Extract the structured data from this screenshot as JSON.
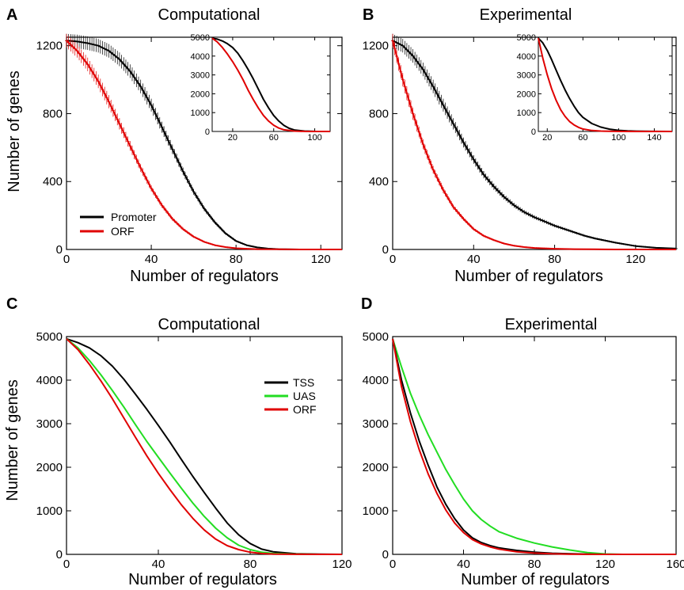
{
  "chart_data": [
    {
      "panel": "A",
      "type": "line",
      "title": "Computational",
      "xlabel": "Number of regulators",
      "ylabel": "Number of genes",
      "xlim": [
        0,
        130
      ],
      "ylim": [
        0,
        1250
      ],
      "xticks": [
        0,
        40,
        80,
        120
      ],
      "yticks": [
        0,
        400,
        800,
        1200
      ],
      "error_bars": true,
      "legend": {
        "position": "bottom-left",
        "entries": [
          "Promoter",
          "ORF"
        ]
      },
      "series": [
        {
          "name": "Promoter",
          "color": "#000000",
          "x": [
            0,
            5,
            10,
            15,
            20,
            25,
            30,
            35,
            40,
            45,
            50,
            55,
            60,
            65,
            70,
            75,
            80,
            85,
            90,
            95,
            100,
            110,
            120,
            130
          ],
          "y": [
            1230,
            1225,
            1215,
            1200,
            1170,
            1120,
            1050,
            960,
            850,
            720,
            590,
            460,
            340,
            240,
            160,
            95,
            50,
            25,
            12,
            5,
            2,
            0,
            0,
            0
          ]
        },
        {
          "name": "ORF",
          "color": "#e00000",
          "x": [
            0,
            5,
            10,
            15,
            20,
            25,
            30,
            35,
            40,
            45,
            50,
            55,
            60,
            65,
            70,
            75,
            80,
            85,
            90,
            100,
            110,
            120,
            130
          ],
          "y": [
            1230,
            1170,
            1090,
            990,
            870,
            740,
            610,
            480,
            360,
            260,
            180,
            120,
            75,
            45,
            25,
            14,
            7,
            4,
            2,
            1,
            0,
            0,
            0
          ]
        }
      ],
      "inset": {
        "xlim": [
          0,
          115
        ],
        "ylim": [
          0,
          5000
        ],
        "xticks": [
          20,
          60,
          100
        ],
        "yticks": [
          0,
          1000,
          2000,
          3000,
          4000,
          5000
        ],
        "series": [
          {
            "color": "#000000",
            "x": [
              0,
              5,
              10,
              15,
              20,
              25,
              30,
              35,
              40,
              45,
              50,
              55,
              60,
              65,
              70,
              75,
              80,
              90,
              100,
              115
            ],
            "y": [
              4950,
              4900,
              4800,
              4650,
              4450,
              4150,
              3750,
              3300,
              2800,
              2250,
              1700,
              1250,
              850,
              550,
              320,
              170,
              80,
              20,
              5,
              0
            ]
          },
          {
            "color": "#e00000",
            "x": [
              0,
              5,
              10,
              15,
              20,
              25,
              30,
              35,
              40,
              45,
              50,
              55,
              60,
              65,
              70,
              80,
              90,
              100,
              115
            ],
            "y": [
              4950,
              4750,
              4450,
              4100,
              3700,
              3250,
              2750,
              2200,
              1700,
              1250,
              850,
              550,
              330,
              180,
              90,
              20,
              5,
              0,
              0
            ]
          }
        ]
      }
    },
    {
      "panel": "B",
      "type": "line",
      "title": "Experimental",
      "xlabel": "Number of regulators",
      "ylabel": "",
      "xlim": [
        0,
        140
      ],
      "ylim": [
        0,
        1250
      ],
      "xticks": [
        0,
        40,
        80,
        120
      ],
      "yticks": [
        0,
        400,
        800,
        1200
      ],
      "error_bars": true,
      "series": [
        {
          "name": "Promoter",
          "color": "#000000",
          "x": [
            0,
            5,
            10,
            15,
            20,
            25,
            30,
            35,
            40,
            45,
            50,
            55,
            60,
            65,
            70,
            75,
            80,
            85,
            90,
            95,
            100,
            110,
            120,
            130,
            140
          ],
          "y": [
            1230,
            1200,
            1140,
            1060,
            960,
            850,
            740,
            630,
            530,
            440,
            370,
            310,
            260,
            220,
            190,
            165,
            140,
            120,
            100,
            80,
            65,
            40,
            20,
            10,
            5
          ]
        },
        {
          "name": "ORF",
          "color": "#e00000",
          "x": [
            0,
            5,
            10,
            15,
            20,
            25,
            30,
            35,
            40,
            45,
            50,
            55,
            60,
            65,
            70,
            80,
            90,
            100,
            110,
            120,
            140
          ],
          "y": [
            1230,
            1000,
            800,
            620,
            470,
            350,
            250,
            180,
            120,
            80,
            55,
            35,
            22,
            14,
            9,
            4,
            2,
            1,
            0,
            0,
            0
          ]
        }
      ],
      "inset": {
        "xlim": [
          10,
          160
        ],
        "ylim": [
          0,
          5000
        ],
        "xticks": [
          20,
          60,
          100,
          140
        ],
        "yticks": [
          0,
          1000,
          2000,
          3000,
          4000,
          5000
        ],
        "series": [
          {
            "color": "#000000",
            "x": [
              10,
              15,
              20,
              25,
              30,
              35,
              40,
              45,
              50,
              55,
              60,
              70,
              80,
              90,
              100,
              110,
              120,
              140,
              160
            ],
            "y": [
              4950,
              4700,
              4300,
              3800,
              3250,
              2700,
              2200,
              1750,
              1350,
              1000,
              750,
              420,
              230,
              120,
              60,
              30,
              15,
              5,
              0
            ]
          },
          {
            "color": "#e00000",
            "x": [
              10,
              15,
              20,
              25,
              30,
              35,
              40,
              45,
              50,
              55,
              60,
              70,
              80,
              90,
              100,
              120,
              160
            ],
            "y": [
              4950,
              3900,
              3000,
              2250,
              1650,
              1150,
              800,
              530,
              350,
              220,
              130,
              50,
              20,
              8,
              3,
              0,
              0
            ]
          }
        ]
      }
    },
    {
      "panel": "C",
      "type": "line",
      "title": "Computational",
      "xlabel": "Number of regulators",
      "ylabel": "Number of genes",
      "xlim": [
        0,
        120
      ],
      "ylim": [
        0,
        5000
      ],
      "xticks": [
        0,
        40,
        80,
        120
      ],
      "yticks": [
        0,
        1000,
        2000,
        3000,
        4000,
        5000
      ],
      "legend": {
        "position": "top-right",
        "entries": [
          "TSS",
          "UAS",
          "ORF"
        ]
      },
      "series": [
        {
          "name": "TSS",
          "color": "#000000",
          "x": [
            0,
            5,
            10,
            15,
            20,
            25,
            30,
            35,
            40,
            45,
            50,
            55,
            60,
            65,
            70,
            75,
            80,
            85,
            90,
            100,
            110,
            120
          ],
          "y": [
            4950,
            4860,
            4740,
            4560,
            4320,
            4020,
            3680,
            3330,
            2960,
            2580,
            2180,
            1790,
            1420,
            1060,
            720,
            450,
            250,
            120,
            60,
            15,
            5,
            0
          ]
        },
        {
          "name": "UAS",
          "color": "#22dd22",
          "x": [
            0,
            5,
            10,
            15,
            20,
            25,
            30,
            35,
            40,
            45,
            50,
            55,
            60,
            65,
            70,
            75,
            80,
            85,
            90,
            100,
            110,
            120
          ],
          "y": [
            4950,
            4740,
            4450,
            4120,
            3760,
            3380,
            2980,
            2590,
            2230,
            1870,
            1520,
            1180,
            870,
            600,
            380,
            210,
            110,
            50,
            20,
            5,
            0,
            0
          ]
        },
        {
          "name": "ORF",
          "color": "#e00000",
          "x": [
            0,
            5,
            10,
            15,
            20,
            25,
            30,
            35,
            40,
            45,
            50,
            55,
            60,
            65,
            70,
            75,
            80,
            85,
            90,
            100,
            110,
            120
          ],
          "y": [
            4950,
            4700,
            4360,
            3980,
            3570,
            3130,
            2690,
            2260,
            1860,
            1490,
            1140,
            830,
            560,
            350,
            200,
            110,
            50,
            20,
            8,
            2,
            0,
            0
          ]
        }
      ]
    },
    {
      "panel": "D",
      "type": "line",
      "title": "Experimental",
      "xlabel": "Number of regulators",
      "ylabel": "",
      "xlim": [
        0,
        160
      ],
      "ylim": [
        0,
        5000
      ],
      "xticks": [
        0,
        40,
        80,
        120,
        160
      ],
      "yticks": [
        0,
        1000,
        2000,
        3000,
        4000,
        5000
      ],
      "series": [
        {
          "name": "UAS",
          "color": "#22dd22",
          "x": [
            0,
            5,
            10,
            15,
            20,
            25,
            30,
            35,
            40,
            45,
            50,
            55,
            60,
            70,
            80,
            90,
            100,
            110,
            120,
            130,
            140,
            160
          ],
          "y": [
            4950,
            4300,
            3700,
            3200,
            2750,
            2350,
            1950,
            1600,
            1270,
            1000,
            800,
            650,
            520,
            370,
            260,
            170,
            100,
            40,
            10,
            0,
            0,
            0
          ]
        },
        {
          "name": "TSS",
          "color": "#000000",
          "x": [
            0,
            5,
            10,
            15,
            20,
            25,
            30,
            35,
            40,
            45,
            50,
            55,
            60,
            70,
            80,
            90,
            100,
            110,
            120,
            160
          ],
          "y": [
            4950,
            4000,
            3250,
            2600,
            2050,
            1550,
            1150,
            820,
            560,
            380,
            270,
            200,
            150,
            90,
            50,
            25,
            12,
            5,
            0,
            0
          ]
        },
        {
          "name": "ORF",
          "color": "#e00000",
          "x": [
            0,
            5,
            10,
            15,
            20,
            25,
            30,
            35,
            40,
            45,
            50,
            55,
            60,
            70,
            80,
            90,
            100,
            120,
            160
          ],
          "y": [
            4950,
            3850,
            3050,
            2400,
            1850,
            1400,
            1020,
            720,
            500,
            340,
            240,
            170,
            120,
            60,
            30,
            12,
            5,
            0,
            0
          ]
        }
      ]
    }
  ]
}
